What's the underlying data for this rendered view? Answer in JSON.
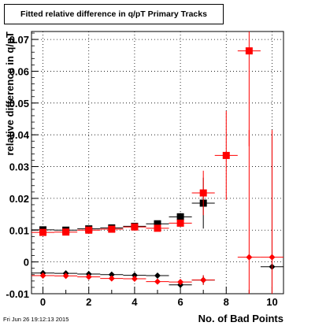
{
  "footer_text": "Fri Jun 26 19:12:13 2015",
  "chart_data": {
    "type": "scatter",
    "title": "Fitted relative difference in q/pT Primary Tracks",
    "xlabel": "No. of Bad Points",
    "ylabel": "relative difference in q/pT",
    "xlim": [
      -0.5,
      10.5
    ],
    "ylim": [
      -0.01,
      0.0725
    ],
    "grid": true,
    "x_ticks": [
      "0",
      "2",
      "4",
      "6",
      "8",
      "10"
    ],
    "y_ticks": [
      "-0.01",
      "0",
      "0.01",
      "0.02",
      "0.03",
      "0.04",
      "0.05",
      "0.06",
      "0.07"
    ],
    "series": [
      {
        "color": "#000000",
        "marker": "square",
        "points": [
          {
            "x": 0,
            "y": 0.0101,
            "xerr": 0.5,
            "yerr": 0.0003
          },
          {
            "x": 1,
            "y": 0.01,
            "xerr": 0.5,
            "yerr": 0.0003
          },
          {
            "x": 2,
            "y": 0.0104,
            "xerr": 0.5,
            "yerr": 0.0003
          },
          {
            "x": 3,
            "y": 0.0107,
            "xerr": 0.5,
            "yerr": 0.0004
          },
          {
            "x": 4,
            "y": 0.0112,
            "xerr": 0.5,
            "yerr": 0.0005
          },
          {
            "x": 5,
            "y": 0.012,
            "xerr": 0.5,
            "yerr": 0.0007
          },
          {
            "x": 6,
            "y": 0.0142,
            "xerr": 0.5,
            "yerr": 0.0012
          },
          {
            "x": 7,
            "y": 0.0185,
            "xerr": 0.5,
            "yerr": 0.008
          }
        ]
      },
      {
        "color": "#ff0000",
        "marker": "square",
        "points": [
          {
            "x": 0,
            "y": 0.0093,
            "xerr": 0.5,
            "yerr": 0.0003
          },
          {
            "x": 1,
            "y": 0.0094,
            "xerr": 0.5,
            "yerr": 0.0003
          },
          {
            "x": 2,
            "y": 0.01,
            "xerr": 0.5,
            "yerr": 0.0003
          },
          {
            "x": 3,
            "y": 0.0103,
            "xerr": 0.5,
            "yerr": 0.0004
          },
          {
            "x": 4,
            "y": 0.011,
            "xerr": 0.5,
            "yerr": 0.0005
          },
          {
            "x": 5,
            "y": 0.0106,
            "xerr": 0.5,
            "yerr": 0.0006
          },
          {
            "x": 6,
            "y": 0.0122,
            "xerr": 0.5,
            "yerr": 0.001
          },
          {
            "x": 7,
            "y": 0.0217,
            "xerr": 0.5,
            "yerr": 0.007
          },
          {
            "x": 8,
            "y": 0.0335,
            "xerr": 0.5,
            "yerr": 0.014
          },
          {
            "x": 9,
            "y": 0.0664,
            "xerr": 0.5,
            "yerr": 0.03
          }
        ]
      },
      {
        "color": "#000000",
        "marker": "diamond",
        "points": [
          {
            "x": 0,
            "y": -0.0035,
            "xerr": 0.5,
            "yerr": 0.0003
          },
          {
            "x": 1,
            "y": -0.0036,
            "xerr": 0.5,
            "yerr": 0.0003
          },
          {
            "x": 2,
            "y": -0.0038,
            "xerr": 0.5,
            "yerr": 0.0003
          },
          {
            "x": 3,
            "y": -0.004,
            "xerr": 0.5,
            "yerr": 0.0004
          },
          {
            "x": 4,
            "y": -0.0042,
            "xerr": 0.5,
            "yerr": 0.0005
          },
          {
            "x": 5,
            "y": -0.0043,
            "xerr": 0.5,
            "yerr": 0.0005
          },
          {
            "x": 6,
            "y": -0.0072,
            "xerr": 0.5,
            "yerr": 0.001
          },
          {
            "x": 7,
            "y": -0.0057,
            "xerr": 0.5,
            "yerr": 0.0015
          },
          {
            "x": 10,
            "y": -0.0015,
            "xerr": 0.5,
            "yerr": 0.041
          }
        ]
      },
      {
        "color": "#ff0000",
        "marker": "diamond",
        "points": [
          {
            "x": 0,
            "y": -0.0043,
            "xerr": 0.5,
            "yerr": 0.0003
          },
          {
            "x": 1,
            "y": -0.0044,
            "xerr": 0.5,
            "yerr": 0.0003
          },
          {
            "x": 2,
            "y": -0.0047,
            "xerr": 0.5,
            "yerr": 0.0003
          },
          {
            "x": 3,
            "y": -0.0052,
            "xerr": 0.5,
            "yerr": 0.0004
          },
          {
            "x": 4,
            "y": -0.0053,
            "xerr": 0.5,
            "yerr": 0.0005
          },
          {
            "x": 5,
            "y": -0.0062,
            "xerr": 0.5,
            "yerr": 0.0006
          },
          {
            "x": 6,
            "y": -0.0063,
            "xerr": 0.5,
            "yerr": 0.0009
          },
          {
            "x": 7,
            "y": -0.0057,
            "xerr": 0.5,
            "yerr": 0.0015
          },
          {
            "x": 9,
            "y": 0.0015,
            "xerr": 0.5,
            "yerr": 0.04
          },
          {
            "x": 10,
            "y": 0.0015,
            "xerr": 0.5,
            "yerr": 0.04
          }
        ]
      }
    ]
  }
}
